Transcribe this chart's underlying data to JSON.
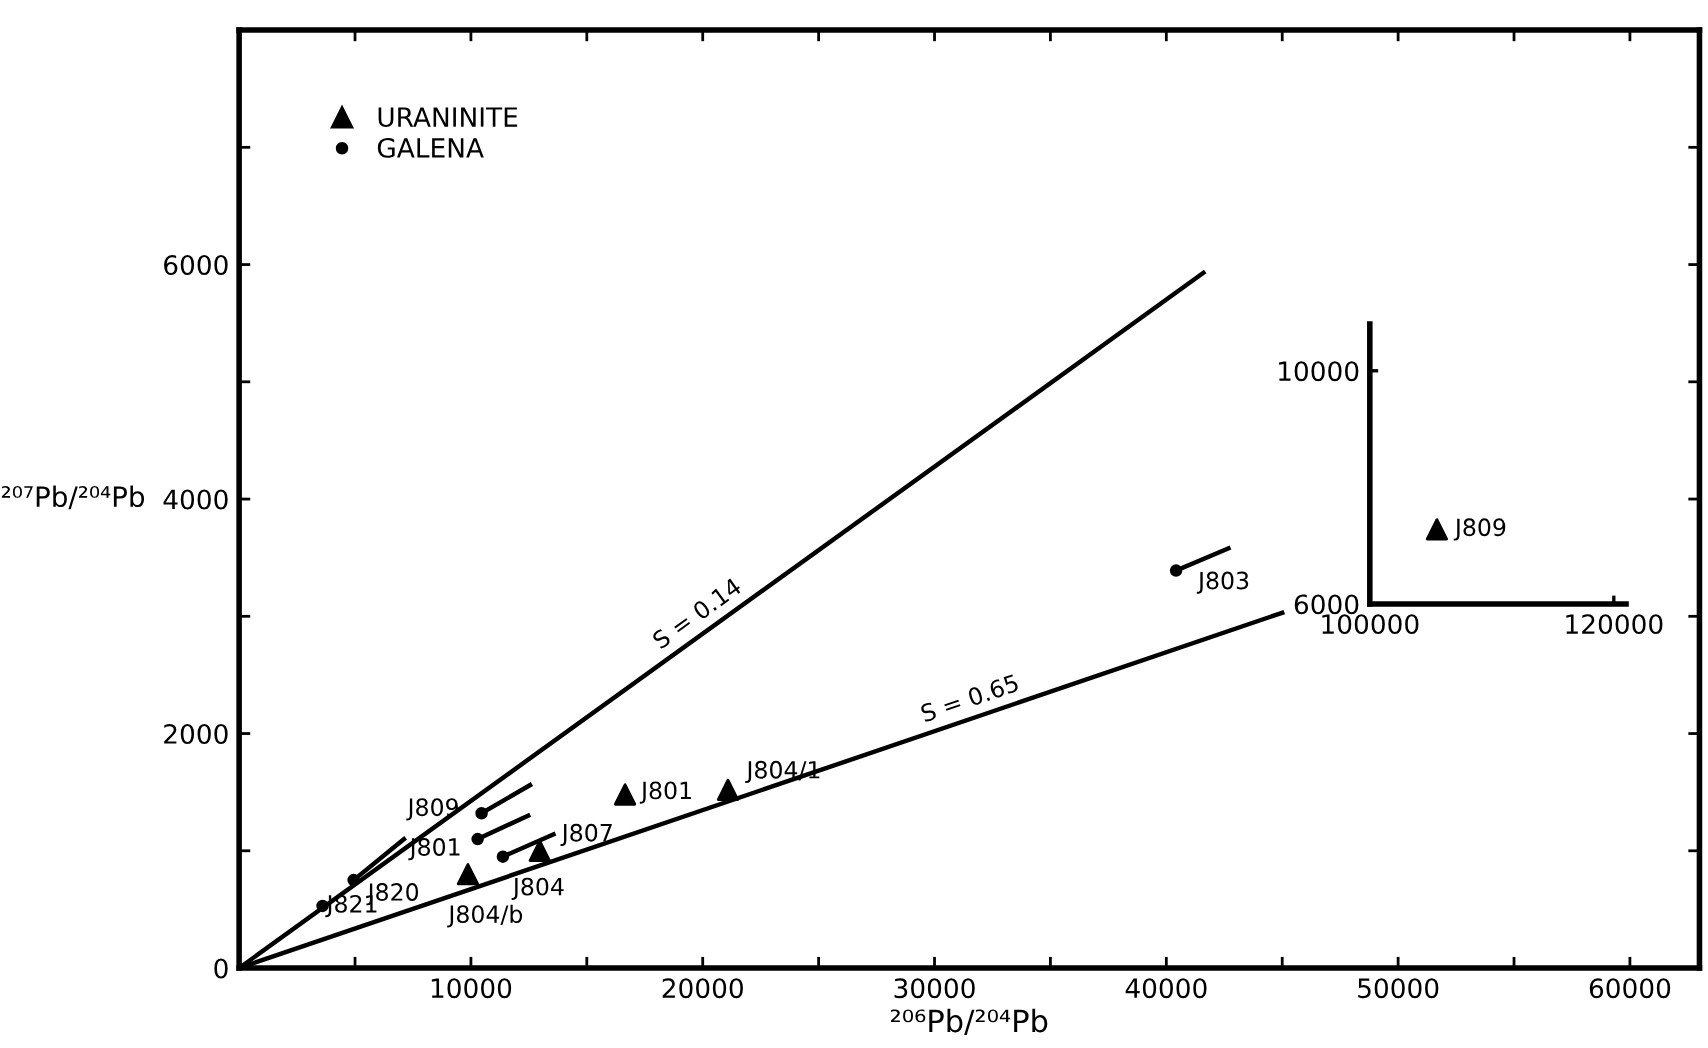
{
  "chart_data": [
    {
      "type": "scatter",
      "xlabel": "²⁰⁶Pb/²⁰⁴Pb",
      "ylabel": "²⁰⁷Pb/²⁰⁴Pb",
      "xlim": [
        0,
        63000
      ],
      "ylim": [
        0,
        8000
      ],
      "xticks": [
        {
          "value": 0,
          "label": null
        },
        {
          "value": 5000,
          "label": null
        },
        10000,
        {
          "value": 15000,
          "label": null
        },
        20000,
        {
          "value": 25000,
          "label": null
        },
        30000,
        {
          "value": 35000,
          "label": null
        },
        40000,
        {
          "value": 45000,
          "label": null
        },
        50000,
        {
          "value": 55000,
          "label": null
        },
        60000
      ],
      "yticks": [
        0,
        {
          "value": 1000,
          "label": null
        },
        2000,
        {
          "value": 3000,
          "label": null
        },
        4000,
        {
          "value": 5000,
          "label": null
        },
        6000,
        {
          "value": 7000,
          "label": null
        }
      ],
      "grid": false,
      "legend": "top left",
      "series": [
        {
          "name": "URANINITE",
          "marker": "triangle",
          "color": "#000000",
          "x": [
            9870,
            12970,
            16650,
            21090
          ],
          "values": [
            800,
            1000,
            1480,
            1520
          ]
        },
        {
          "name": "GALENA",
          "marker": "circle",
          "color": "#000000",
          "x": [
            3600,
            4940,
            10290,
            10460,
            11380,
            40420
          ],
          "values": [
            530,
            750,
            1100,
            1320,
            950,
            3390
          ]
        },
        {
          "type": "line",
          "color": "#000000",
          "x": [
            0,
            41600
          ],
          "values": [
            0,
            5930
          ]
        },
        {
          "type": "line",
          "color": "#000000",
          "x": [
            0,
            45000
          ],
          "values": [
            0,
            3030
          ]
        },
        {
          "type": "line",
          "color": "#000000",
          "x": [
            4940,
            7110
          ],
          "values": [
            750,
            1100
          ]
        },
        {
          "type": "line",
          "color": "#000000",
          "x": [
            10290,
            12470
          ],
          "values": [
            1100,
            1300
          ]
        },
        {
          "type": "line",
          "color": "#000000",
          "x": [
            10460,
            12550
          ],
          "values": [
            1320,
            1560
          ]
        },
        {
          "type": "line",
          "color": "#000000",
          "x": [
            11380,
            13560
          ],
          "values": [
            950,
            1140
          ]
        },
        {
          "type": "line",
          "color": "#000000",
          "x": [
            40420,
            42680
          ],
          "values": [
            3390,
            3580
          ]
        }
      ],
      "annotations": [
        {
          "text": "J809",
          "x": 10460,
          "y": 1320
        },
        {
          "text": "J801",
          "x": 10290,
          "y": 1100
        },
        {
          "text": "J820",
          "x": 4940,
          "y": 750
        },
        {
          "text": "J821",
          "x": 3600,
          "y": 530
        },
        {
          "text": "J804",
          "x": 11380,
          "y": 950
        },
        {
          "text": "J804/b",
          "x": 9870,
          "y": 800
        },
        {
          "text": "J807",
          "x": 12970,
          "y": 1000
        },
        {
          "text": "J801",
          "x": 16650,
          "y": 1480
        },
        {
          "text": "J804/1",
          "x": 21090,
          "y": 1520
        },
        {
          "text": "J803",
          "x": 40420,
          "y": 3390
        },
        {
          "text": "S = 0.14",
          "x": 20250,
          "y": 2887
        },
        {
          "text": "S = 0.65",
          "x": 31800,
          "y": 2141
        }
      ]
    },
    {
      "type": "scatter",
      "xlim": [
        100000,
        121000
      ],
      "ylim": [
        6000,
        10800
      ],
      "xticks": [
        100000,
        120000
      ],
      "yticks": [
        6000,
        10000
      ],
      "grid": false,
      "series": [
        {
          "marker": "triangle",
          "color": "#000000",
          "x": [
            105500
          ],
          "values": [
            7280
          ]
        }
      ],
      "annotations": [
        {
          "text": "J809",
          "x": 105500,
          "y": 7280
        }
      ]
    }
  ]
}
